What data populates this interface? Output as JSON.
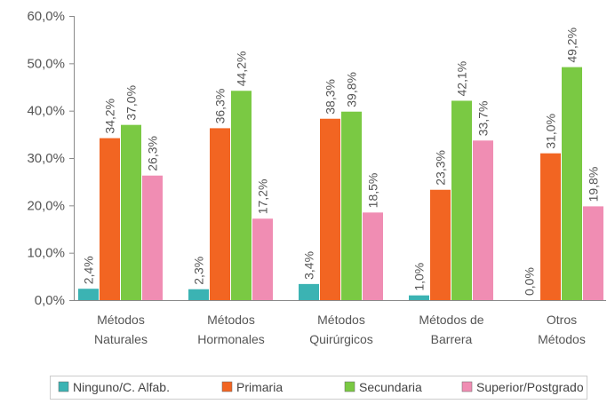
{
  "chart_data": {
    "type": "bar",
    "title": "",
    "xlabel": "",
    "ylabel": "",
    "ylim": [
      0,
      60
    ],
    "y_ticks": [
      "0,0%",
      "10,0%",
      "20,0%",
      "30,0%",
      "40,0%",
      "50,0%",
      "60,0%"
    ],
    "y_tick_values": [
      0,
      10,
      20,
      30,
      40,
      50,
      60
    ],
    "grid": false,
    "legend_position": "bottom",
    "categories": [
      [
        "Métodos",
        "Naturales"
      ],
      [
        "Métodos",
        "Hormonales"
      ],
      [
        "Métodos",
        "Quirúrgicos"
      ],
      [
        "Métodos de",
        "Barrera"
      ],
      [
        "Otros",
        "Métodos"
      ]
    ],
    "series": [
      {
        "name": "Ninguno/C. Alfab.",
        "color": "#3bb3b3",
        "values": [
          2.4,
          2.3,
          3.4,
          1.0,
          0.0
        ],
        "labels": [
          "2,4%",
          "2,3%",
          "3,4%",
          "1,0%",
          "0,0%"
        ]
      },
      {
        "name": "Primaria",
        "color": "#f26522",
        "values": [
          34.2,
          36.3,
          38.3,
          23.3,
          31.0
        ],
        "labels": [
          "34,2%",
          "36,3%",
          "38,3%",
          "23,3%",
          "31,0%"
        ]
      },
      {
        "name": "Secundaria",
        "color": "#7ac943",
        "values": [
          37.0,
          44.2,
          39.8,
          42.1,
          49.2
        ],
        "labels": [
          "37,0%",
          "44,2%",
          "39,8%",
          "42,1%",
          "49,2%"
        ]
      },
      {
        "name": "Superior/Postgrado",
        "color": "#f08db3",
        "values": [
          26.3,
          17.2,
          18.5,
          33.7,
          19.8
        ],
        "labels": [
          "26,3%",
          "17,2%",
          "18,5%",
          "33,7%",
          "19,8%"
        ]
      }
    ]
  }
}
